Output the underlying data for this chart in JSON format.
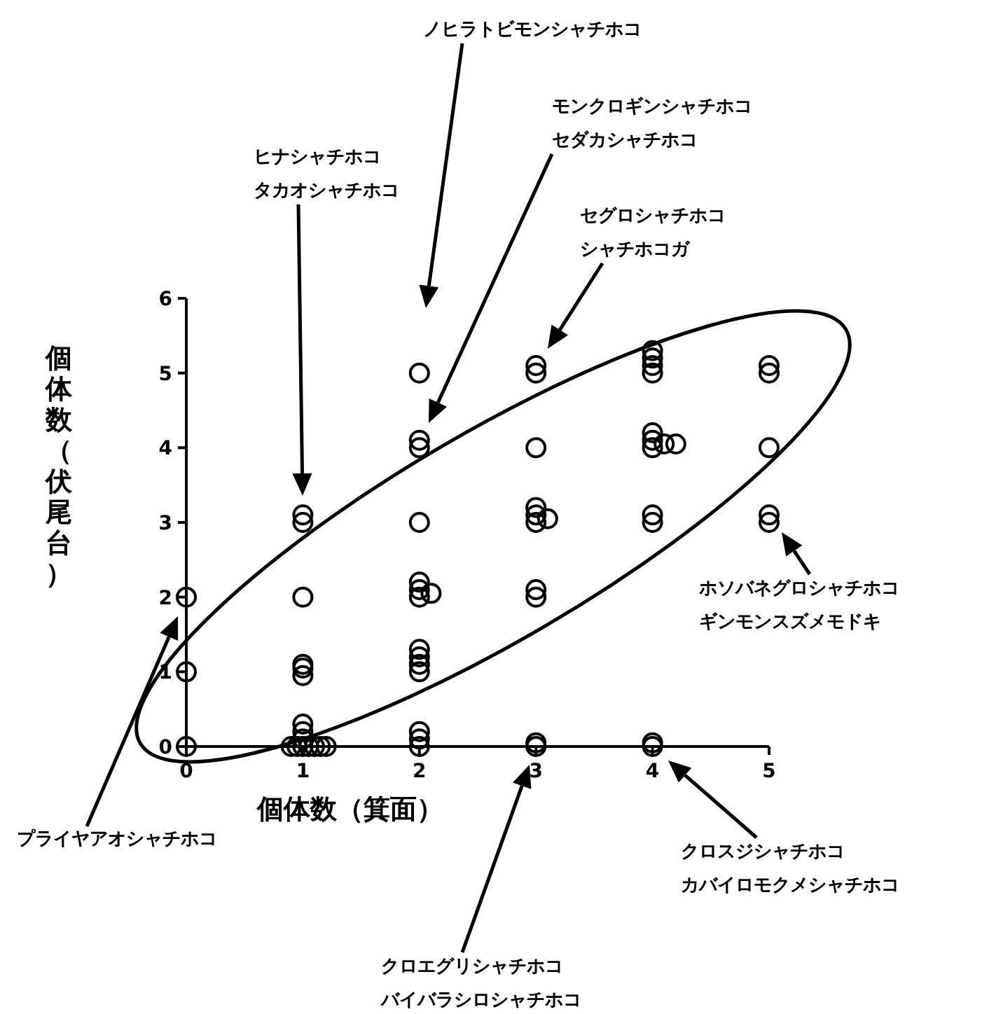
{
  "chart_data": {
    "type": "scatter",
    "xlabel": "個体数（箕面）",
    "ylabel": "個体数（伏尾台）",
    "xlim": [
      0,
      5
    ],
    "ylim": [
      0,
      6
    ],
    "xticks": [
      0,
      1,
      2,
      3,
      4,
      5
    ],
    "yticks": [
      0,
      1,
      2,
      3,
      4,
      5,
      6
    ],
    "marker": "circle",
    "series": [
      {
        "color": "#000000",
        "x": [
          0,
          0,
          0,
          1,
          1,
          1,
          1,
          1,
          1,
          0.9,
          0.95,
          1,
          1.05,
          1.1,
          1.15,
          1.2,
          1,
          1,
          1,
          2,
          2,
          2,
          2,
          2,
          2,
          2,
          2.1,
          2,
          2,
          2,
          2,
          2,
          2,
          2,
          3,
          3,
          3,
          3,
          3,
          3,
          3.1,
          3,
          3,
          3,
          3,
          4,
          4,
          4,
          4,
          4,
          4,
          4,
          4.1,
          4.2,
          4,
          4,
          4,
          4,
          5,
          5,
          5,
          5,
          5
        ],
        "values": [
          0,
          1,
          2,
          3,
          3.1,
          2,
          0.95,
          1.05,
          1.1,
          0,
          0,
          0,
          0,
          0,
          0,
          0,
          0.1,
          0.2,
          0.3,
          5,
          4,
          4.1,
          3,
          2,
          2.1,
          2.2,
          2.05,
          1,
          1.1,
          1.2,
          1.3,
          0,
          0.1,
          0.2,
          5,
          5.1,
          4,
          3,
          3.1,
          3.2,
          3.05,
          2,
          2.1,
          0,
          0.05,
          5,
          5.1,
          5.2,
          5.3,
          4,
          4.1,
          4.2,
          4.05,
          4.05,
          3,
          3.1,
          0,
          0.05,
          5,
          5.1,
          4,
          3,
          3.1
        ]
      }
    ],
    "annotations": [
      "ノヒラトビモンシャチホコ",
      "モンクロギンシャチホコ",
      "セダカシャチホコ",
      "ヒナシャチホコ",
      "タカオシャチホコ",
      "セグロシャチホコ",
      "シャチホコガ",
      "ホソバネグロシャチホコ",
      "ギンモンスズメモドキ",
      "プライヤアオシャチホコ",
      "クロスジシャチホコ",
      "カバイロモクメシャチホコ",
      "クロエグリシャチホコ",
      "バイバラシロシャチホコ"
    ]
  }
}
